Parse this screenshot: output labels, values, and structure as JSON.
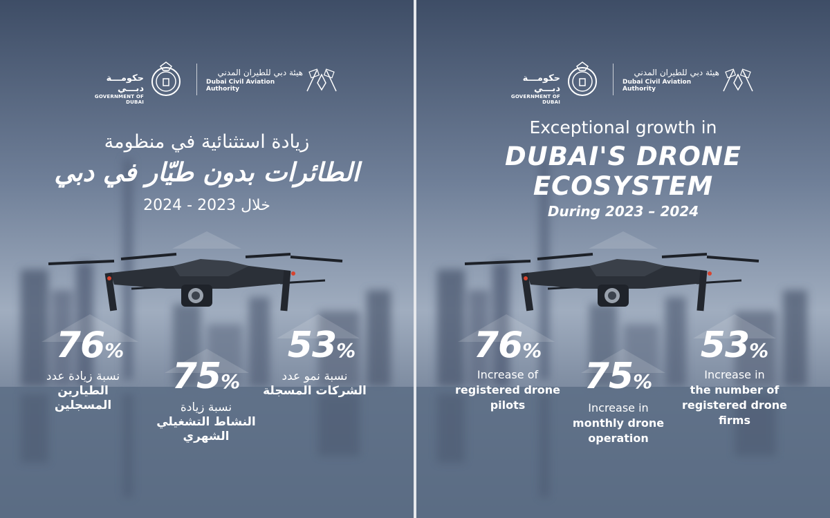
{
  "colors": {
    "sky_top": "#4a5a72",
    "sky_mid": "#8d9bb0",
    "water": "#5b6c84",
    "text": "#ffffff"
  },
  "logos": {
    "government_ar": "حكومـــة دبـــي",
    "government_en": "GOVERNMENT OF DUBAI",
    "authority_ar": "هيئة دبي للطيران المدني",
    "authority_en": "Dubai Civil Aviation Authority"
  },
  "arabic_panel": {
    "title_line1": "زيادة استثنائية في منظومة",
    "title_line2": "الطائرات بدون طيّار في دبي",
    "period": "خلال 2023 - 2024",
    "stats": [
      {
        "value": "76",
        "unit": "%",
        "label_line1": "نسبة زيادة عدد",
        "label_line2": "الطيارين المسجلين"
      },
      {
        "value": "75",
        "unit": "%",
        "label_line1": "نسبة زيادة",
        "label_line2": "النشاط التشغيلي الشهري"
      },
      {
        "value": "53",
        "unit": "%",
        "label_line1": "نسبة نمو عدد",
        "label_line2": "الشركات المسجلة"
      }
    ]
  },
  "english_panel": {
    "title_line1": "Exceptional growth in",
    "title_line2": "DUBAI'S DRONE",
    "title_line3": "ECOSYSTEM",
    "period": "During 2023 – 2024",
    "stats": [
      {
        "value": "76",
        "unit": "%",
        "label_line1": "Increase of",
        "label_line2": "registered drone",
        "label_line3": "pilots"
      },
      {
        "value": "75",
        "unit": "%",
        "label_line1": "Increase in",
        "label_line2": "monthly drone",
        "label_line3": "operation"
      },
      {
        "value": "53",
        "unit": "%",
        "label_line1": "Increase in",
        "label_line2": "the number of",
        "label_line3": "registered drone",
        "label_line4": "firms"
      }
    ]
  }
}
